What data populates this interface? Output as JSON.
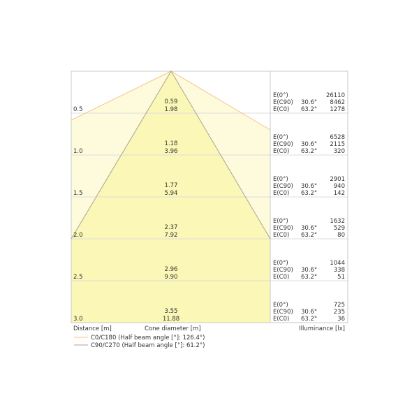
{
  "rows": [
    {
      "distance": "0.5",
      "c0": "0.59",
      "c90": "1.98",
      "e0": "26110",
      "ec90": "8462",
      "ec0": "1278"
    },
    {
      "distance": "1.0",
      "c0": "1.18",
      "c90": "3.96",
      "e0": "6528",
      "ec90": "2115",
      "ec0": "320"
    },
    {
      "distance": "1.5",
      "c0": "1.77",
      "c90": "5.94",
      "e0": "2901",
      "ec90": "940",
      "ec0": "142"
    },
    {
      "distance": "2.0",
      "c0": "2.37",
      "c90": "7.92",
      "e0": "1632",
      "ec90": "529",
      "ec0": "80"
    },
    {
      "distance": "2.5",
      "c0": "2.96",
      "c90": "9.90",
      "e0": "1044",
      "ec90": "338",
      "ec0": "51"
    },
    {
      "distance": "3.0",
      "c0": "3.55",
      "c90": "11.88",
      "e0": "725",
      "ec90": "235",
      "ec0": "36"
    }
  ],
  "e_labels": {
    "e0": "E(0°)",
    "ec90": "E(C90)",
    "ec0": "E(C0)",
    "angle_c90": "30.6°",
    "angle_c0": "63.2°"
  },
  "axis": {
    "distance": "Distance [m]",
    "cone": "Cone diameter [m]",
    "illuminance": "Illuminance [lx]"
  },
  "legend": [
    {
      "label": "C0/C180 (Half beam angle [°]: 126.4°)",
      "color": "#f5c48e"
    },
    {
      "label": "C90/C270 (Half beam angle [°]: 61.2°)",
      "color": "#a8a490"
    }
  ],
  "colors": {
    "outer_fill": "#fefbdd",
    "inner_fill": "#fbf7b6",
    "grid": "#dcdcdc"
  }
}
